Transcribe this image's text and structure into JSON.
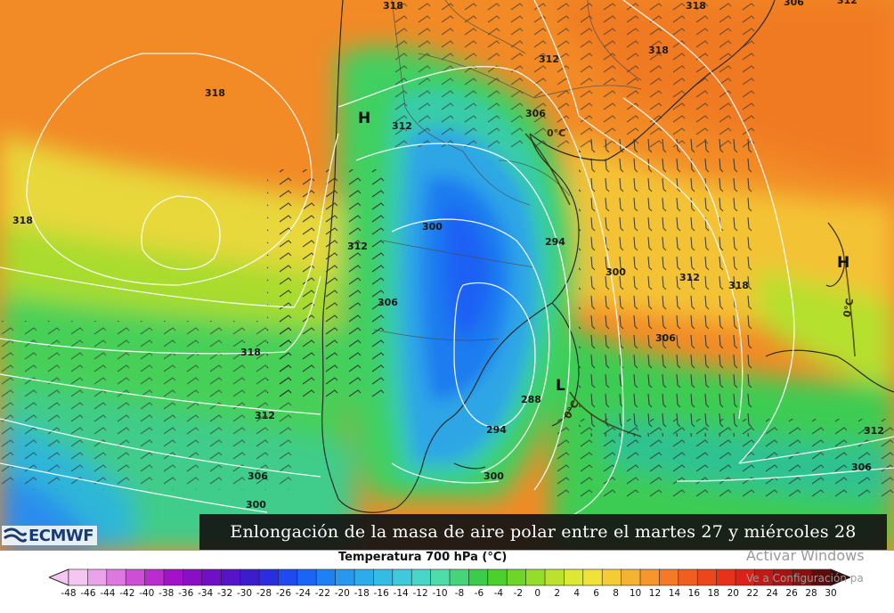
{
  "caption": "Enlongación de la masa de aire polar entre el martes 27 y miércoles 28",
  "logo": {
    "text": "ECMWF",
    "icon": "ecmwf-logo-icon"
  },
  "legend": {
    "title": "Temperatura 700 hPa (°C)",
    "ticks": [
      "-48",
      "-46",
      "-44",
      "-42",
      "-40",
      "-38",
      "-36",
      "-34",
      "-32",
      "-30",
      "-28",
      "-26",
      "-24",
      "-22",
      "-20",
      "-18",
      "-16",
      "-14",
      "-12",
      "-10",
      "-8",
      "-6",
      "-4",
      "-2",
      "0",
      "2",
      "4",
      "6",
      "8",
      "10",
      "12",
      "14",
      "16",
      "18",
      "20",
      "22",
      "24",
      "26",
      "28",
      "30"
    ],
    "colors": [
      "#f6c6f2",
      "#eaa2ea",
      "#dc78e0",
      "#cc4fd6",
      "#b92dcf",
      "#a212c8",
      "#8a0ec6",
      "#7010c4",
      "#5614c8",
      "#3c1ccc",
      "#2a2ee0",
      "#1e4af0",
      "#1a64f6",
      "#1e80f4",
      "#2698ee",
      "#2cacea",
      "#34bce4",
      "#3ecadc",
      "#48d6c8",
      "#50dcaa",
      "#46d47a",
      "#3ccc4c",
      "#4cd02c",
      "#6ed628",
      "#96dc2a",
      "#bce22e",
      "#dce834",
      "#f0e23a",
      "#f6cc36",
      "#f6b232",
      "#f6962c",
      "#f47a26",
      "#f05e20",
      "#ec461c",
      "#e6321a",
      "#dc2218",
      "#c61616",
      "#a81414",
      "#881010",
      "#5e0c0c"
    ]
  },
  "map_labels": {
    "contours": [
      "318",
      "312",
      "318",
      "306",
      "318",
      "312",
      "300",
      "312",
      "294",
      "300",
      "312",
      "318",
      "306",
      "306",
      "318",
      "306",
      "312",
      "288",
      "294",
      "300",
      "306",
      "300",
      "312",
      "318",
      "318",
      "312",
      "306"
    ],
    "isotherms": [
      "0°C",
      "0°C",
      "0°C"
    ],
    "pressure_centers": [
      "H",
      "H",
      "L"
    ]
  },
  "watermark": {
    "line1": "Activar Windows",
    "line2": "Ve a Configuración pa"
  }
}
